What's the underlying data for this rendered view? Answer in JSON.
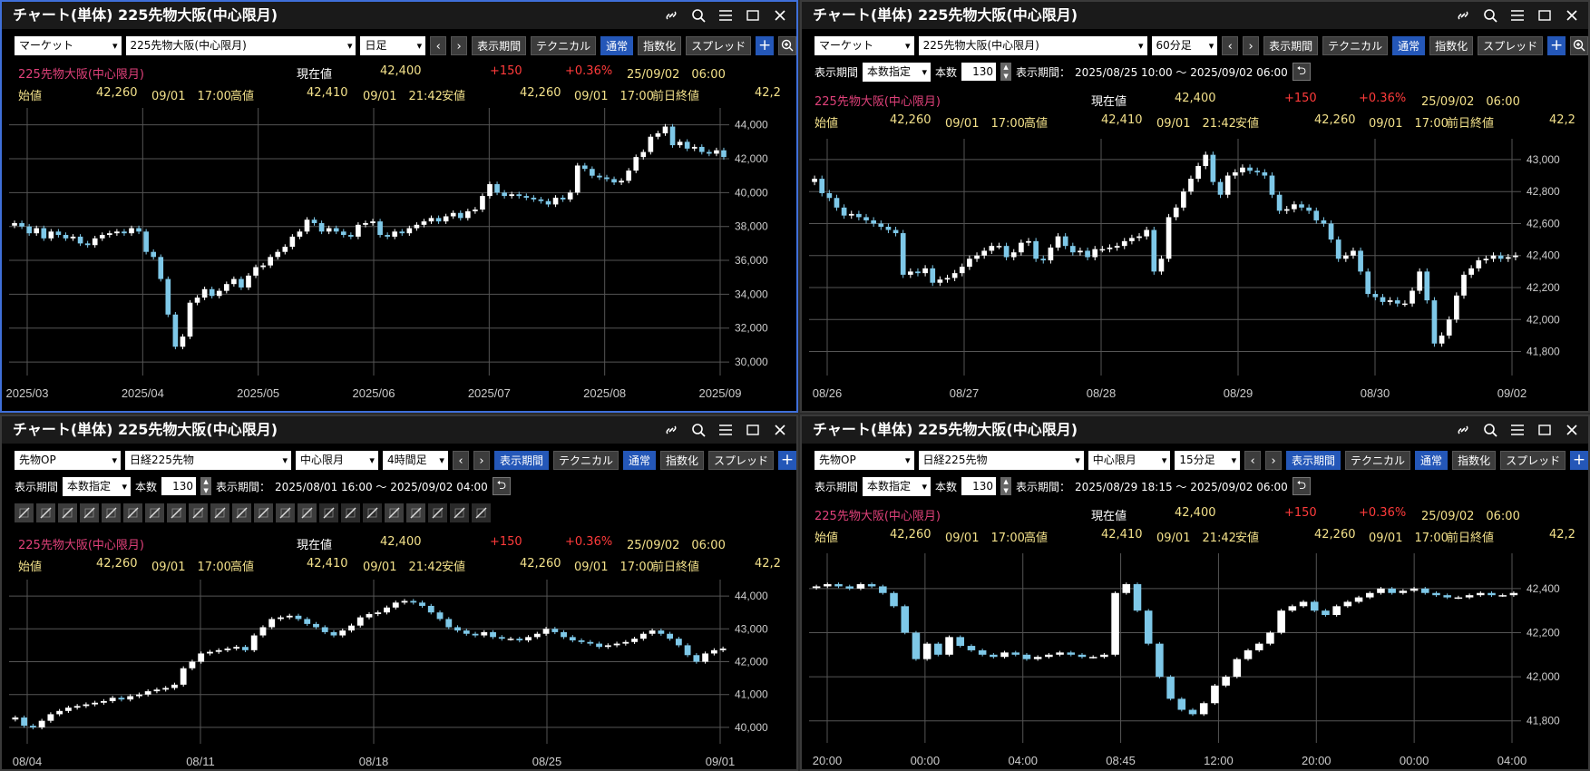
{
  "title": "チャート(単体) 225先物大阪(中心限月)",
  "colors": {
    "up": "#ffffff",
    "down": "#7ec8e8",
    "grid": "#555555",
    "axis": "#cccccc",
    "accent": "#2457b8",
    "name": "#e0417a",
    "value": "#f2e08a",
    "change": "#ff3b3b"
  },
  "labels": {
    "ctrl_prev": "‹",
    "ctrl_next": "›",
    "technical": "テクニカル",
    "normal": "通常",
    "index": "指数化",
    "spread": "スプレッド",
    "display_period_btn": "表示期間",
    "plus": "+",
    "period_label": "表示期間",
    "period_mode": "本数指定",
    "count_label": "本数",
    "range_label": "表示期間：",
    "open_label": "始値",
    "high_label": "高値",
    "low_label": "安値",
    "prev_label": "前日終値",
    "current_label": "現在値",
    "spin_up": "▲",
    "spin_down": "▼",
    "return_icon": "⮌"
  },
  "quote": {
    "name": "225先物大阪(中心限月)",
    "current": "42,400",
    "change": "+150",
    "change_pct": "+0.36%",
    "datetime": "25/09/02　06:00",
    "open": "42,260",
    "open_time": "09/01　17:00",
    "high": "42,410",
    "high_time": "09/01　21:42",
    "low": "42,260",
    "low_time": "09/01　17:00",
    "prev_close": "42,2"
  },
  "draw_tools": [
    "line-tool-icon",
    "pencil-tool-icon",
    "parallel-lines-icon",
    "horizontal-lines-icon",
    "fan-arc-icon",
    "fan-lines-icon",
    "vertical-lines-icon",
    "channel-icon",
    "pentagon-icon",
    "circle-icon",
    "rectangle-icon",
    "hline-icon",
    "text-icon",
    "icon-stamp-icon",
    "move-icon",
    "copy-icon",
    "erase-icon",
    "eraser-icon",
    "label-icon",
    "magnet-icon",
    "pen-edit-icon",
    "settings-icon"
  ],
  "panels": [
    {
      "market": "マーケット",
      "symbol": "225先物大阪(中心限月)",
      "contract": "",
      "timeframe": "日足",
      "count": "",
      "range": "",
      "chart_data": {
        "type": "candlestick",
        "x_labels": [
          "2025/03",
          "2025/04",
          "2025/05",
          "2025/06",
          "2025/07",
          "2025/08",
          "2025/09"
        ],
        "y_ticks": [
          30000,
          32000,
          34000,
          36000,
          38000,
          40000,
          42000,
          44000
        ],
        "y_labels": [
          "30,000",
          "32,000",
          "34,000",
          "36,000",
          "38,000",
          "40,000",
          "42,000",
          "44,000"
        ],
        "ylim": [
          29200,
          45000
        ],
        "close": [
          38200,
          38000,
          37600,
          37900,
          37300,
          37700,
          37500,
          37300,
          37400,
          37000,
          36900,
          37300,
          37500,
          37600,
          37700,
          37600,
          37900,
          37700,
          36500,
          36200,
          34900,
          32800,
          30900,
          31500,
          33500,
          33800,
          34300,
          33900,
          34200,
          34600,
          34900,
          34400,
          35100,
          35600,
          35700,
          36200,
          36500,
          36800,
          37400,
          37700,
          38400,
          38200,
          37700,
          37900,
          37700,
          37500,
          37400,
          38100,
          38200,
          38300,
          37500,
          37400,
          37700,
          37600,
          37900,
          38100,
          38300,
          38500,
          38300,
          38600,
          38800,
          38500,
          38900,
          39000,
          39800,
          40500,
          40000,
          39800,
          39900,
          39800,
          39700,
          39600,
          39500,
          39300,
          39700,
          39600,
          40000,
          41600,
          41400,
          41000,
          40900,
          40800,
          40600,
          40700,
          41300,
          42100,
          42400,
          43300,
          43500,
          43900,
          42800,
          43000,
          42600,
          42700,
          42400,
          42300,
          42500,
          42100
        ],
        "wick": 300
      },
      "chart_note": ""
    },
    {
      "market": "マーケット",
      "symbol": "225先物大阪(中心限月)",
      "contract": "",
      "timeframe": "60分足",
      "count": "130",
      "range": "2025/08/25 10:00 ～ 2025/09/02 06:00",
      "chart_data": {
        "type": "candlestick",
        "x_labels": [
          "08/26",
          "08/27",
          "08/28",
          "08/29",
          "08/30",
          "09/02"
        ],
        "y_ticks": [
          41800,
          42000,
          42200,
          42400,
          42600,
          42800,
          43000
        ],
        "y_labels": [
          "41,800",
          "42,000",
          "42,200",
          "42,400",
          "42,600",
          "42,800",
          "43,000"
        ],
        "ylim": [
          41650,
          43130
        ],
        "close": [
          42880,
          42790,
          42760,
          42700,
          42650,
          42660,
          42640,
          42620,
          42600,
          42580,
          42560,
          42540,
          42280,
          42300,
          42290,
          42320,
          42230,
          42250,
          42260,
          42290,
          42330,
          42380,
          42400,
          42430,
          42460,
          42460,
          42390,
          42420,
          42480,
          42490,
          42380,
          42370,
          42450,
          42520,
          42460,
          42420,
          42430,
          42390,
          42440,
          42440,
          42450,
          42460,
          42490,
          42510,
          42520,
          42560,
          42300,
          42380,
          42640,
          42700,
          42800,
          42880,
          42960,
          43030,
          42860,
          42780,
          42900,
          42920,
          42950,
          42930,
          42920,
          42900,
          42780,
          42680,
          42690,
          42720,
          42700,
          42680,
          42620,
          42600,
          42500,
          42380,
          42400,
          42430,
          42300,
          42160,
          42140,
          42110,
          42120,
          42100,
          42100,
          42180,
          42300,
          42120,
          41850,
          41900,
          42000,
          42150,
          42280,
          42320,
          42370,
          42380,
          42400,
          42380,
          42390,
          42400
        ],
        "wick": 40
      },
      "chart_note": ""
    },
    {
      "market": "先物OP",
      "symbol": "日経225先物",
      "contract": "中心限月",
      "timeframe": "4時間足",
      "count": "130",
      "range": "2025/08/01 16:00 ～ 2025/09/02 04:00",
      "chart_data": {
        "type": "candlestick",
        "x_labels": [
          "08/04",
          "08/11",
          "08/18",
          "08/25",
          "09/01"
        ],
        "y_ticks": [
          40000,
          41000,
          42000,
          43000,
          44000
        ],
        "y_labels": [
          "40,000",
          "41,000",
          "42,000",
          "43,000",
          "44,000"
        ],
        "ylim": [
          39500,
          44500
        ],
        "close": [
          40300,
          40050,
          40000,
          40200,
          40400,
          40500,
          40600,
          40650,
          40700,
          40750,
          40800,
          40900,
          40850,
          40950,
          41000,
          41100,
          41150,
          41200,
          41300,
          41800,
          42000,
          42250,
          42300,
          42350,
          42400,
          42450,
          42350,
          42800,
          43050,
          43300,
          43350,
          43400,
          43300,
          43150,
          43050,
          42900,
          42800,
          42950,
          43100,
          43350,
          43450,
          43500,
          43650,
          43800,
          43850,
          43800,
          43700,
          43500,
          43300,
          43050,
          42950,
          42850,
          42800,
          42900,
          42750,
          42700,
          42700,
          42650,
          42750,
          42850,
          43000,
          42900,
          42750,
          42650,
          42600,
          42550,
          42450,
          42500,
          42550,
          42600,
          42700,
          42850,
          42950,
          42850,
          42700,
          42500,
          42200,
          42000,
          42250,
          42350,
          42400
        ],
        "wick": 120
      },
      "chart_note": ""
    },
    {
      "market": "先物OP",
      "symbol": "日経225先物",
      "contract": "中心限月",
      "timeframe": "15分足",
      "count": "130",
      "range": "2025/08/29 18:15 ～ 2025/09/02 06:00",
      "chart_data": {
        "type": "candlestick",
        "x_labels": [
          "20:00",
          "00:00",
          "04:00",
          "08:45",
          "12:00",
          "20:00",
          "00:00",
          "04:00"
        ],
        "y_ticks": [
          41800,
          42000,
          42200,
          42400
        ],
        "y_labels": [
          "41,800",
          "42,000",
          "42,200",
          "42,400"
        ],
        "ylim": [
          41700,
          42560
        ],
        "close": [
          42410,
          42420,
          42410,
          42400,
          42420,
          42410,
          42380,
          42320,
          42200,
          42080,
          42150,
          42100,
          42180,
          42140,
          42120,
          42100,
          42090,
          42110,
          42100,
          42080,
          42090,
          42100,
          42110,
          42100,
          42090,
          42090,
          42100,
          42380,
          42420,
          42300,
          42150,
          42000,
          41900,
          41850,
          41830,
          41880,
          41960,
          42000,
          42080,
          42120,
          42150,
          42200,
          42300,
          42320,
          42340,
          42300,
          42280,
          42320,
          42340,
          42360,
          42380,
          42400,
          42380,
          42390,
          42400,
          42380,
          42370,
          42360,
          42360,
          42370,
          42380,
          42370,
          42370,
          42380
        ],
        "wick": 15
      },
      "chart_note": ""
    }
  ]
}
